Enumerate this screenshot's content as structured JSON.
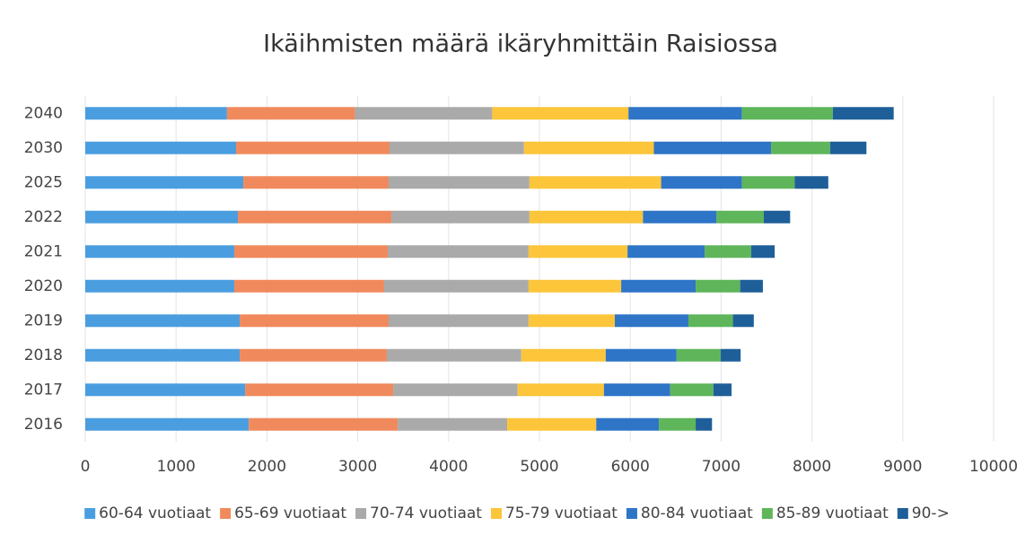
{
  "chart_data": {
    "type": "bar",
    "orientation": "horizontal",
    "stacked": true,
    "title": "Ikäihmisten määrä ikäryhmittäin Raisiossa",
    "categories": [
      "2016",
      "2017",
      "2018",
      "2019",
      "2020",
      "2021",
      "2022",
      "2025",
      "2030",
      "2040"
    ],
    "series": [
      {
        "name": "60-64 vuotiaat",
        "color": "#4a9ee0",
        "values": [
          1800,
          1760,
          1700,
          1700,
          1640,
          1640,
          1680,
          1740,
          1660,
          1560
        ]
      },
      {
        "name": "65-69 vuotiaat",
        "color": "#f08a5d",
        "values": [
          1640,
          1630,
          1620,
          1640,
          1650,
          1690,
          1690,
          1600,
          1690,
          1410
        ]
      },
      {
        "name": "70-74 vuotiaat",
        "color": "#aaaaaa",
        "values": [
          1205,
          1370,
          1480,
          1540,
          1590,
          1550,
          1520,
          1550,
          1480,
          1510
        ]
      },
      {
        "name": "75-79 vuotiaat",
        "color": "#fcc53a",
        "values": [
          980,
          950,
          930,
          950,
          1020,
          1090,
          1250,
          1450,
          1430,
          1500
        ]
      },
      {
        "name": "80-84 vuotiaat",
        "color": "#2e75c7",
        "values": [
          690,
          730,
          780,
          810,
          820,
          850,
          810,
          890,
          1290,
          1250
        ]
      },
      {
        "name": "85-89 vuotiaat",
        "color": "#5fb55a",
        "values": [
          405,
          475,
          485,
          490,
          490,
          510,
          520,
          580,
          650,
          1000
        ]
      },
      {
        "name": "90->",
        "color": "#1f5f99",
        "values": [
          180,
          200,
          220,
          230,
          250,
          260,
          290,
          370,
          400,
          670
        ]
      }
    ],
    "xlim": [
      0,
      10000
    ],
    "xticks": [
      0,
      1000,
      2000,
      3000,
      4000,
      5000,
      6000,
      7000,
      8000,
      9000,
      10000
    ],
    "grid": true,
    "legend": "bottom"
  }
}
